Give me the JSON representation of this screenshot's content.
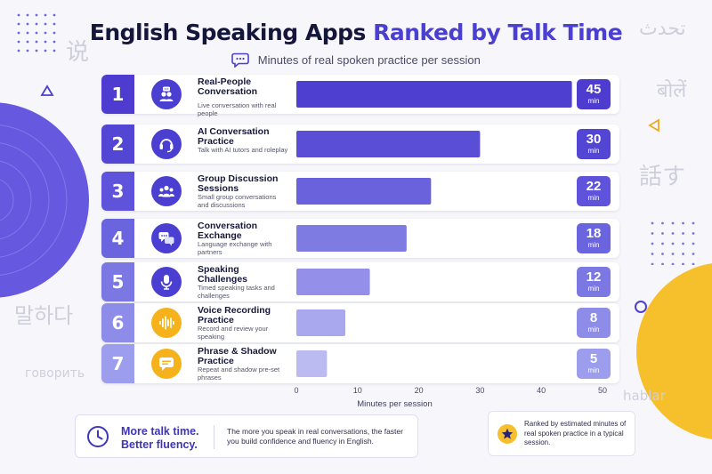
{
  "title_main": "English Speaking Apps",
  "title_accent": "Ranked by Talk Time",
  "subtitle": "Minutes of real spoken practice per session",
  "value_unit": "min",
  "background_words": [
    "说",
    "تحدث",
    "बोलें",
    "話す",
    "말하다",
    "говорить",
    "hablar"
  ],
  "colors": {
    "accent": "#4a3fd0",
    "yellow": "#f6c02c",
    "rank_gradient": [
      "#4d3ccf",
      "#5446d4",
      "#5e53da",
      "#6a64de",
      "#7b78e3",
      "#8d8ce8",
      "#9c9ded"
    ],
    "bar_gradient": [
      "#4e3fd0",
      "#5a4ed6",
      "#6a62dd",
      "#7e7be3",
      "#948fe8",
      "#a9a8ee",
      "#bbbbf2"
    ]
  },
  "chart_data": {
    "type": "bar",
    "orientation": "horizontal",
    "categories": [
      "Real-People Conversation",
      "AI Conversation Practice",
      "Group Discussion Sessions",
      "Conversation Exchange",
      "Speaking Challenges",
      "Voice Recording Practice",
      "Phrase & Shadow Practice"
    ],
    "values": [
      45,
      30,
      22,
      18,
      12,
      8,
      5
    ],
    "xlabel": "Minutes per session",
    "xlim": [
      0,
      50
    ],
    "xticks": [
      0,
      10,
      20,
      30,
      40,
      50
    ],
    "grid": false,
    "legend": "none"
  },
  "items": [
    {
      "rank": "1",
      "name": "Real-People Conversation",
      "desc": "Live conversation with real people",
      "value": "45",
      "icon": "people-chat-icon"
    },
    {
      "rank": "2",
      "name": "AI Conversation Practice",
      "desc": "Talk with AI tutors and roleplay",
      "value": "30",
      "icon": "headset-icon"
    },
    {
      "rank": "3",
      "name": "Group Discussion Sessions",
      "desc": "Small group conversations and discussions",
      "value": "22",
      "icon": "group-icon"
    },
    {
      "rank": "4",
      "name": "Conversation Exchange",
      "desc": "Language exchange with partners",
      "value": "18",
      "icon": "chat-bubbles-icon"
    },
    {
      "rank": "5",
      "name": "Speaking Challenges",
      "desc": "Timed speaking tasks and challenges",
      "value": "12",
      "icon": "microphone-icon"
    },
    {
      "rank": "6",
      "name": "Voice Recording Practice",
      "desc": "Record and review your speaking",
      "value": "8",
      "icon": "sound-wave-icon"
    },
    {
      "rank": "7",
      "name": "Phrase & Shadow Practice",
      "desc": "Repeat and shadow pre-set phrases",
      "value": "5",
      "icon": "speech-bubble-icon"
    }
  ],
  "footer": {
    "tagline_1": "More talk time.",
    "tagline_2": "Better fluency.",
    "text": "The more you speak in real conversations, the faster you build confidence and fluency in English.",
    "note": "Ranked by estimated minutes of real spoken practice in a typical session."
  }
}
